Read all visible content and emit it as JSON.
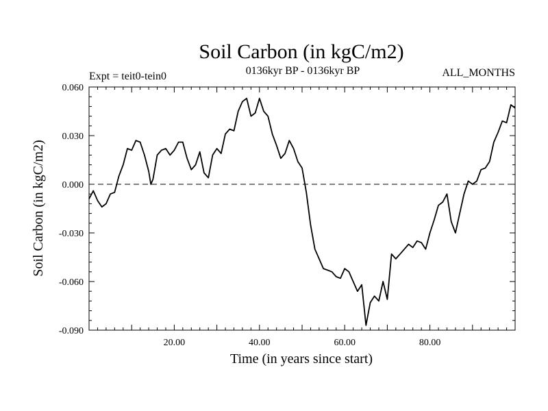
{
  "chart_data": {
    "type": "line",
    "title": "Soil Carbon (in kgC/m2)",
    "subtitle": "0136kyr BP - 0136kyr BP",
    "experiment": "Expt = teit0-tein0",
    "period": "ALL_MONTHS",
    "xlabel": "Time (in years since start)",
    "ylabel": "Soil Carbon (in kgC/m2)",
    "xlim": [
      0,
      100
    ],
    "ylim": [
      -0.09,
      0.06
    ],
    "x_ticks": [
      20,
      40,
      60,
      80
    ],
    "x_tick_labels": [
      "20.00",
      "40.00",
      "60.00",
      "80.00"
    ],
    "y_ticks": [
      0.06,
      0.03,
      0.0,
      -0.03,
      -0.06,
      -0.09
    ],
    "y_tick_labels": [
      "0.060",
      "0.030",
      "0.000",
      "-0.030",
      "-0.060",
      "-0.090"
    ],
    "reference_line": 0.0,
    "series": [
      {
        "name": "Soil Carbon",
        "color": "#000000",
        "x": [
          0.0,
          1.0,
          2.0,
          3.0,
          4.0,
          5.0,
          6.0,
          7.0,
          8.0,
          9.0,
          10.0,
          11.0,
          12.0,
          13.0,
          14.0,
          14.5,
          15.0,
          16.0,
          17.0,
          18.0,
          19.0,
          20.0,
          21.0,
          22.0,
          23.0,
          24.0,
          25.0,
          26.0,
          27.0,
          28.0,
          29.0,
          30.0,
          31.0,
          32.0,
          33.0,
          34.0,
          35.0,
          36.0,
          37.0,
          38.0,
          39.0,
          40.0,
          41.0,
          42.0,
          43.0,
          44.0,
          45.0,
          46.0,
          47.0,
          48.0,
          49.0,
          50.0,
          51.0,
          52.0,
          53.0,
          54.0,
          55.0,
          56.0,
          57.0,
          58.0,
          59.0,
          60.0,
          61.0,
          62.0,
          63.0,
          64.0,
          65.0,
          66.0,
          67.0,
          68.0,
          69.0,
          70.0,
          71.0,
          72.0,
          73.0,
          74.0,
          75.0,
          76.0,
          77.0,
          78.0,
          79.0,
          80.0,
          81.0,
          82.0,
          83.0,
          84.0,
          85.0,
          86.0,
          87.0,
          88.0,
          89.0,
          90.0,
          91.0,
          92.0,
          93.0,
          94.0,
          95.0,
          96.0,
          97.0,
          98.0,
          99.0,
          100.0
        ],
        "y": [
          -0.009,
          -0.004,
          -0.01,
          -0.014,
          -0.012,
          -0.006,
          -0.005,
          0.005,
          0.012,
          0.022,
          0.021,
          0.027,
          0.026,
          0.018,
          0.008,
          0.0,
          0.003,
          0.018,
          0.021,
          0.022,
          0.018,
          0.021,
          0.026,
          0.026,
          0.016,
          0.009,
          0.012,
          0.02,
          0.007,
          0.004,
          0.018,
          0.022,
          0.019,
          0.031,
          0.034,
          0.033,
          0.045,
          0.051,
          0.053,
          0.042,
          0.044,
          0.053,
          0.045,
          0.042,
          0.031,
          0.024,
          0.016,
          0.019,
          0.027,
          0.022,
          0.014,
          0.01,
          -0.005,
          -0.025,
          -0.04,
          -0.046,
          -0.052,
          -0.053,
          -0.054,
          -0.057,
          -0.058,
          -0.052,
          -0.054,
          -0.06,
          -0.066,
          -0.062,
          -0.087,
          -0.073,
          -0.069,
          -0.072,
          -0.06,
          -0.071,
          -0.043,
          -0.046,
          -0.043,
          -0.04,
          -0.037,
          -0.039,
          -0.035,
          -0.036,
          -0.04,
          -0.03,
          -0.022,
          -0.013,
          -0.011,
          -0.006,
          -0.023,
          -0.03,
          -0.018,
          -0.006,
          0.002,
          0.0,
          0.002,
          0.009,
          0.01,
          0.014,
          0.026,
          0.032,
          0.039,
          0.038,
          0.049,
          0.047
        ]
      }
    ]
  }
}
